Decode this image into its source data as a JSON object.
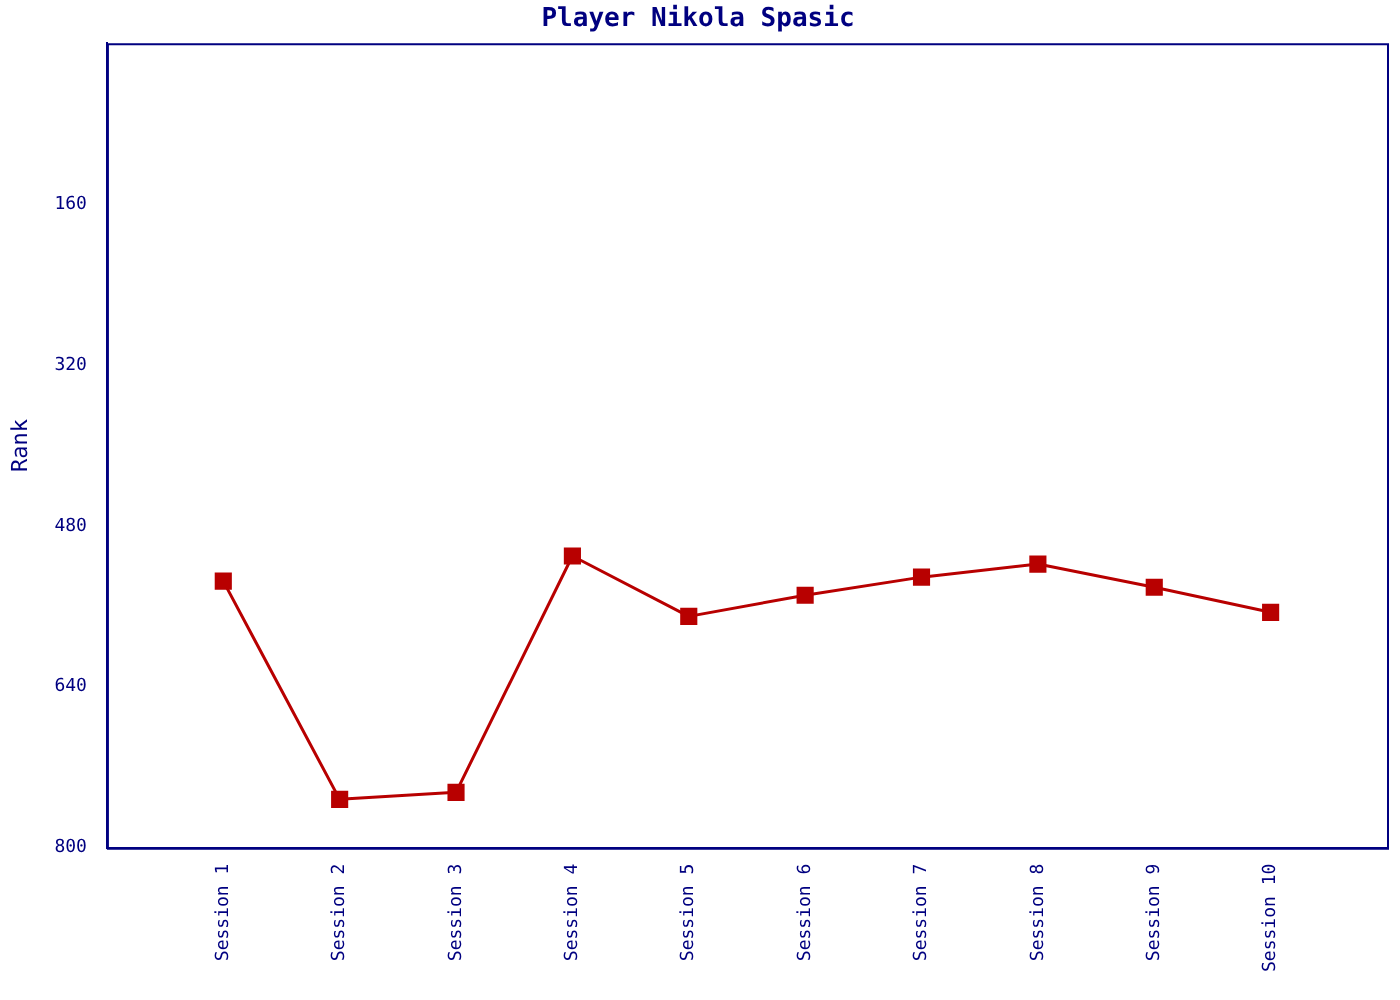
{
  "chart_data": {
    "type": "line",
    "title": "Player Nikola Spasic",
    "ylabel": "Rank",
    "categories": [
      "Session 1",
      "Session 2",
      "Session 3",
      "Session 4",
      "Session 5",
      "Session 6",
      "Session 7",
      "Session 8",
      "Session 9",
      "Session 10"
    ],
    "series": [
      {
        "color": "#b80000",
        "values": [
          535,
          752,
          745,
          510,
          570,
          549,
          531,
          518,
          541,
          566
        ]
      }
    ],
    "ylim": [
      800,
      0
    ],
    "yticks": [
      160,
      320,
      480,
      640,
      800
    ],
    "grid": false,
    "legend": false,
    "marker": "square",
    "line_style": "solid"
  }
}
